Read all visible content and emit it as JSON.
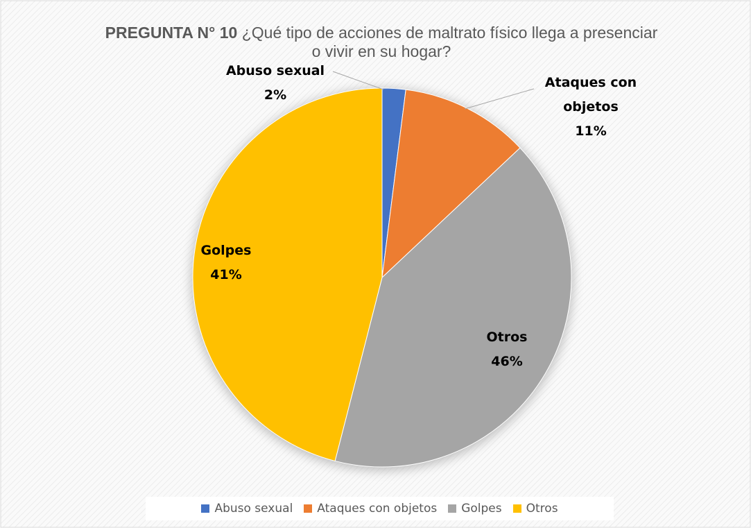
{
  "chart_data": {
    "type": "pie",
    "title": "PREGUNTA N° 10",
    "subtitle": "¿Qué tipo de acciones de maltrato físico llega a presenciar o vivir en su hogar?",
    "categories": [
      "Abuso sexual",
      "Ataques con objetos",
      "Golpes",
      "Otros"
    ],
    "values": [
      2,
      11,
      41,
      46
    ],
    "value_labels": [
      "2%",
      "11%",
      "41%",
      "46%"
    ],
    "colors": [
      "#4472c4",
      "#ed7d31",
      "#a5a5a5",
      "#ffc000"
    ],
    "legend": "bottom"
  }
}
